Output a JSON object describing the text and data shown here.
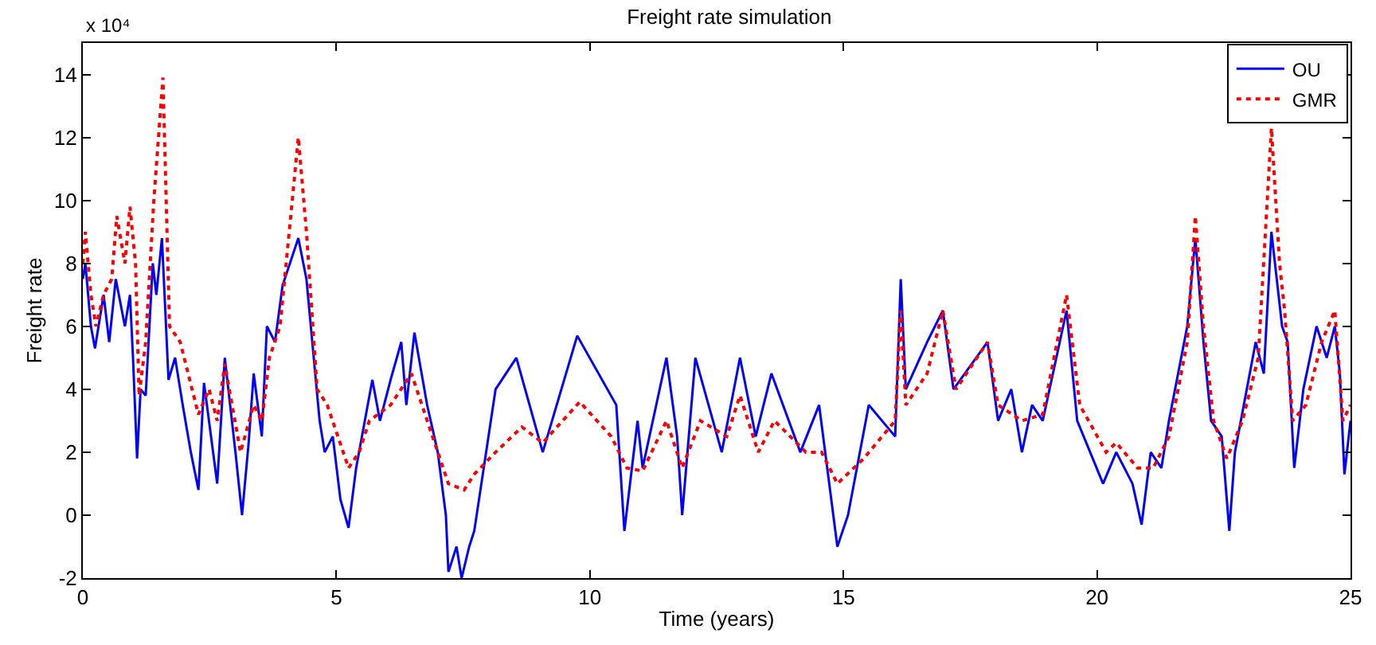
{
  "chart_data": {
    "type": "line",
    "title": "Freight rate simulation",
    "xlabel": "Time (years)",
    "ylabel": "Freight rate",
    "annotations": [
      "x 10⁴"
    ],
    "xlim": [
      0,
      25
    ],
    "xticks": [
      0,
      5,
      10,
      15,
      20,
      25
    ],
    "ylim": [
      -2,
      15
    ],
    "yticks": [
      -2,
      0,
      2,
      4,
      6,
      8,
      10,
      12,
      14
    ],
    "legend": "top right",
    "marker": "none",
    "series": [
      {
        "name": "OU",
        "color": "#0000ff",
        "line_style": "solid",
        "x": [
          0.0,
          0.05,
          0.16,
          0.24,
          0.41,
          0.52,
          0.65,
          0.83,
          0.93,
          0.99,
          1.07,
          1.14,
          1.24,
          1.38,
          1.45,
          1.56,
          1.69,
          1.82,
          1.97,
          2.13,
          2.28,
          2.39,
          2.65,
          2.8,
          3.01,
          3.14,
          3.27,
          3.37,
          3.53,
          3.63,
          3.79,
          3.94,
          4.25,
          4.41,
          4.67,
          4.77,
          4.93,
          5.08,
          5.24,
          5.39,
          5.71,
          5.86,
          6.07,
          6.28,
          6.38,
          6.54,
          6.79,
          7.0,
          7.16,
          7.21,
          7.37,
          7.47,
          7.62,
          7.72,
          8.14,
          8.55,
          9.07,
          9.75,
          10.52,
          10.68,
          10.94,
          11.04,
          11.51,
          11.72,
          11.82,
          12.08,
          12.6,
          12.96,
          13.27,
          13.58,
          14.15,
          14.52,
          14.88,
          15.09,
          15.5,
          16.02,
          16.13,
          16.23,
          16.65,
          16.96,
          17.17,
          17.84,
          18.05,
          18.31,
          18.52,
          18.72,
          18.93,
          19.4,
          19.61,
          20.12,
          20.38,
          20.7,
          20.88,
          21.06,
          21.27,
          21.42,
          21.78,
          21.94,
          22.1,
          22.25,
          22.46,
          22.61,
          22.72,
          23.13,
          23.29,
          23.44,
          23.65,
          23.76,
          23.89,
          24.07,
          24.33,
          24.53,
          24.69,
          24.79,
          24.88,
          25.0
        ],
        "values": [
          7.5,
          8,
          6,
          5.3,
          7,
          5.5,
          7.5,
          6,
          7,
          5,
          1.8,
          4,
          3.8,
          8,
          7,
          8.8,
          4.3,
          5,
          3.5,
          2,
          0.8,
          4.2,
          1,
          5,
          2,
          0,
          2.3,
          4.5,
          2.5,
          6,
          5.5,
          7.3,
          8.8,
          7.5,
          3,
          2,
          2.5,
          0.5,
          -0.4,
          1.5,
          4.3,
          3,
          4.3,
          5.5,
          3.5,
          5.8,
          3.5,
          2,
          0,
          -1.8,
          -1,
          -2,
          -1,
          -0.5,
          4,
          5,
          2,
          5.7,
          3.5,
          -0.5,
          3,
          1.5,
          5,
          2.5,
          0,
          5,
          2,
          5,
          2.5,
          4.5,
          2,
          3.5,
          -1,
          0,
          3.5,
          2.5,
          7.5,
          4,
          5.5,
          6.5,
          4,
          5.5,
          3,
          4,
          2,
          3.5,
          3,
          6.5,
          3,
          1,
          2,
          1,
          -0.3,
          2,
          1.5,
          3,
          6,
          8.8,
          5.5,
          3,
          2.5,
          -0.5,
          2,
          5.5,
          4.5,
          9,
          6,
          5.5,
          1.5,
          4,
          6,
          5,
          6,
          4.5,
          1.3,
          3
        ]
      },
      {
        "name": "GMR",
        "color": "#ff0000",
        "line_style": "dotted",
        "x": [
          0.0,
          0.05,
          0.16,
          0.26,
          0.41,
          0.57,
          0.67,
          0.83,
          0.93,
          1.04,
          1.11,
          1.24,
          1.4,
          1.58,
          1.71,
          1.92,
          2.28,
          2.49,
          2.65,
          2.8,
          3.11,
          3.37,
          3.53,
          3.68,
          3.89,
          4.25,
          4.41,
          4.62,
          4.82,
          5.24,
          5.45,
          5.65,
          6.07,
          6.48,
          7.0,
          7.21,
          7.52,
          7.72,
          8.14,
          8.66,
          9.07,
          9.8,
          10.42,
          10.73,
          11.04,
          11.51,
          11.82,
          12.18,
          12.7,
          12.96,
          13.32,
          13.64,
          14.26,
          14.57,
          14.88,
          15.4,
          16.02,
          16.13,
          16.23,
          16.65,
          16.96,
          17.22,
          17.84,
          18.05,
          18.52,
          18.93,
          19.4,
          19.66,
          20.18,
          20.38,
          20.8,
          21.11,
          21.42,
          21.78,
          21.94,
          22.1,
          22.3,
          22.56,
          22.87,
          23.18,
          23.44,
          23.6,
          23.7,
          23.86,
          24.12,
          24.43,
          24.69,
          24.85,
          25.0
        ],
        "values": [
          8,
          9,
          7,
          6,
          7,
          7.5,
          9.5,
          8,
          9.8,
          8,
          3.8,
          5.5,
          10,
          13.9,
          6,
          5.5,
          3.2,
          4,
          3,
          4.8,
          2,
          3.5,
          3,
          5,
          6,
          12,
          9,
          4,
          3.5,
          1.5,
          2,
          3,
          3.5,
          4.5,
          2,
          1,
          0.8,
          1.3,
          2,
          2.8,
          2.3,
          3.6,
          2.5,
          1.5,
          1.4,
          3,
          1.5,
          3,
          2.5,
          3.8,
          2,
          3,
          2,
          2,
          1,
          1.8,
          3,
          6.5,
          3.5,
          4.5,
          6.5,
          4,
          5.5,
          3.5,
          3,
          3.2,
          7,
          3.5,
          2,
          2.3,
          1.5,
          1.5,
          2.5,
          5.5,
          9.5,
          6,
          3,
          1.8,
          3,
          5,
          12.3,
          8,
          6.5,
          3,
          3.5,
          5.5,
          6.5,
          3,
          3.5
        ]
      }
    ]
  }
}
